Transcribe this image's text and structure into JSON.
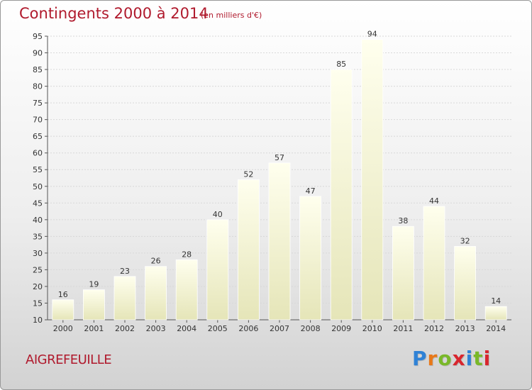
{
  "chart_data": {
    "type": "bar",
    "title": "Contingents 2000 à 2014",
    "subtitle": "(en milliers d'€)",
    "categories": [
      "2000",
      "2001",
      "2002",
      "2003",
      "2004",
      "2005",
      "2006",
      "2007",
      "2008",
      "2009",
      "2010",
      "2011",
      "2012",
      "2013",
      "2014"
    ],
    "values": [
      16,
      19,
      23,
      26,
      28,
      40,
      52,
      57,
      47,
      85,
      94,
      38,
      44,
      32,
      14
    ],
    "ylim": [
      10,
      95
    ],
    "yticks": [
      10,
      15,
      20,
      25,
      30,
      35,
      40,
      45,
      50,
      55,
      60,
      65,
      70,
      75,
      80,
      85,
      90,
      95
    ],
    "grid": true,
    "bar_color_top": "#ffffee",
    "bar_color_bottom": "#e5e5b8"
  },
  "footer": {
    "commune": "AIGREFEUILLE",
    "brand_letters": [
      {
        "ch": "P",
        "color": "#2f82d6"
      },
      {
        "ch": "r",
        "color": "#e87818"
      },
      {
        "ch": "o",
        "color": "#79b829"
      },
      {
        "ch": "x",
        "color": "#d8262e"
      },
      {
        "ch": "i",
        "color": "#2f82d6"
      },
      {
        "ch": "t",
        "color": "#79b829"
      },
      {
        "ch": "i",
        "color": "#d8262e"
      }
    ]
  },
  "colors": {
    "text_accent": "#b01a2d",
    "grid": "#d8d8d8"
  }
}
